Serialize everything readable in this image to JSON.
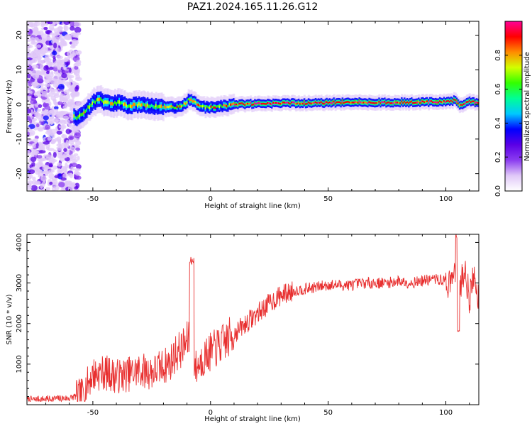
{
  "figure": {
    "title": "PAZ1.2024.165.11.26.G12"
  },
  "colors": {
    "snr_line": "#e83030",
    "axis": "#000000",
    "background": "#ffffff",
    "colormap": [
      "#ffffff",
      "#e0c8f8",
      "#8b3cf0",
      "#5a00e6",
      "#0000ff",
      "#00c8ff",
      "#00ff96",
      "#32ff00",
      "#d2ff00",
      "#ff8c00",
      "#ff0000",
      "#ff0096"
    ]
  },
  "chart_data": [
    {
      "type": "heatmap",
      "name": "spectrogram",
      "xlabel": "Height of straight line (km)",
      "ylabel": "Frequency (Hz)",
      "xlim": [
        -78,
        114
      ],
      "ylim": [
        -25,
        24
      ],
      "x_ticks": [
        -50,
        0,
        50,
        100
      ],
      "x_tick_labels": [
        "-50",
        "0",
        "50",
        "100"
      ],
      "y_ticks": [
        -20,
        -10,
        0,
        10,
        20
      ],
      "y_tick_labels": [
        "-20",
        "-10",
        "0",
        "10",
        "20"
      ],
      "ridge": {
        "x": [
          -78,
          -60,
          -57,
          -55,
          -52,
          -50,
          -47,
          -45,
          -42,
          -38,
          -35,
          -30,
          -25,
          -20,
          -15,
          -12,
          -9,
          -7,
          -5,
          -2,
          0,
          5,
          10,
          20,
          30,
          40,
          50,
          60,
          70,
          80,
          90,
          100,
          104,
          106,
          108,
          110,
          114
        ],
        "y": [
          0,
          -2,
          -4,
          -3,
          -1,
          0.5,
          1.5,
          0.5,
          0.3,
          0.5,
          -0.5,
          0,
          -0.5,
          -0.8,
          -0.8,
          -0.5,
          1.5,
          0.8,
          -0.3,
          -0.8,
          -0.8,
          -0.5,
          0,
          0.2,
          0.3,
          0.4,
          0.5,
          0.6,
          0.6,
          0.6,
          0.6,
          0.7,
          1.2,
          -0.5,
          0.2,
          0.8,
          0.5
        ]
      },
      "colorbar": {
        "label": "Normalized spectral amplitude",
        "range": [
          0,
          1
        ],
        "ticks": [
          0.0,
          0.2,
          0.4,
          0.6,
          0.8
        ],
        "tick_labels": [
          "0.0",
          "0.2",
          "0.4",
          "0.6",
          "0.8"
        ]
      }
    },
    {
      "type": "line",
      "name": "snr",
      "xlabel": "Height of straight line (km)",
      "ylabel": "SNR (10 * v/v)",
      "xlim": [
        -78,
        114
      ],
      "ylim": [
        0,
        4200
      ],
      "x_ticks": [
        -50,
        0,
        50,
        100
      ],
      "x_tick_labels": [
        "-50",
        "0",
        "50",
        "100"
      ],
      "y_ticks": [
        1000,
        2000,
        3000,
        4000
      ],
      "y_tick_labels": [
        "1000",
        "2000",
        "3000",
        "4000"
      ],
      "x": [
        -78,
        -70,
        -60,
        -55,
        -52,
        -50,
        -45,
        -40,
        -35,
        -30,
        -25,
        -20,
        -17,
        -15,
        -12,
        -10,
        -8,
        -7,
        -6,
        -5,
        -3,
        0,
        5,
        10,
        15,
        20,
        25,
        30,
        35,
        40,
        45,
        50,
        55,
        60,
        65,
        70,
        75,
        80,
        85,
        90,
        95,
        100,
        102,
        104,
        105,
        106,
        108,
        110,
        112,
        114
      ],
      "y": [
        120,
        140,
        160,
        250,
        550,
        750,
        800,
        700,
        750,
        850,
        800,
        950,
        1050,
        1250,
        1400,
        1550,
        1700,
        1000,
        900,
        1000,
        1150,
        1300,
        1500,
        1750,
        2000,
        2250,
        2500,
        2700,
        2800,
        2850,
        2900,
        2950,
        2950,
        2950,
        3000,
        3000,
        3000,
        3050,
        3000,
        3050,
        3100,
        3050,
        2950,
        3300,
        2300,
        2900,
        3400,
        2600,
        3200,
        2600
      ],
      "jitter": {
        "x": [
          -8,
          104,
          105
        ],
        "y": [
          3650,
          4200,
          1700
        ]
      }
    }
  ]
}
